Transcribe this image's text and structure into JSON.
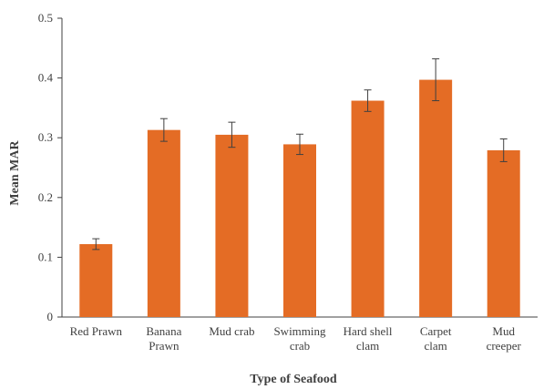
{
  "chart_data": {
    "type": "bar",
    "title": "",
    "xlabel": "Type of Seafood",
    "ylabel": "Mean MAR",
    "ylim": [
      0,
      0.5
    ],
    "yticks": [
      "0",
      "0.1",
      "0.2",
      "0.3",
      "0.4",
      "0.5"
    ],
    "categories": [
      [
        "Red Prawn"
      ],
      [
        "Banana",
        "Prawn"
      ],
      [
        "Mud crab"
      ],
      [
        "Swimming",
        "crab"
      ],
      [
        "Hard shell",
        "clam"
      ],
      [
        "Carpet",
        "clam"
      ],
      [
        "Mud",
        "creeper"
      ]
    ],
    "values": [
      0.122,
      0.313,
      0.305,
      0.289,
      0.362,
      0.397,
      0.279
    ],
    "error_bars": [
      0.009,
      0.019,
      0.021,
      0.017,
      0.018,
      0.035,
      0.019
    ],
    "bar_color": "#e46c25",
    "grid": false,
    "legend": "none"
  }
}
